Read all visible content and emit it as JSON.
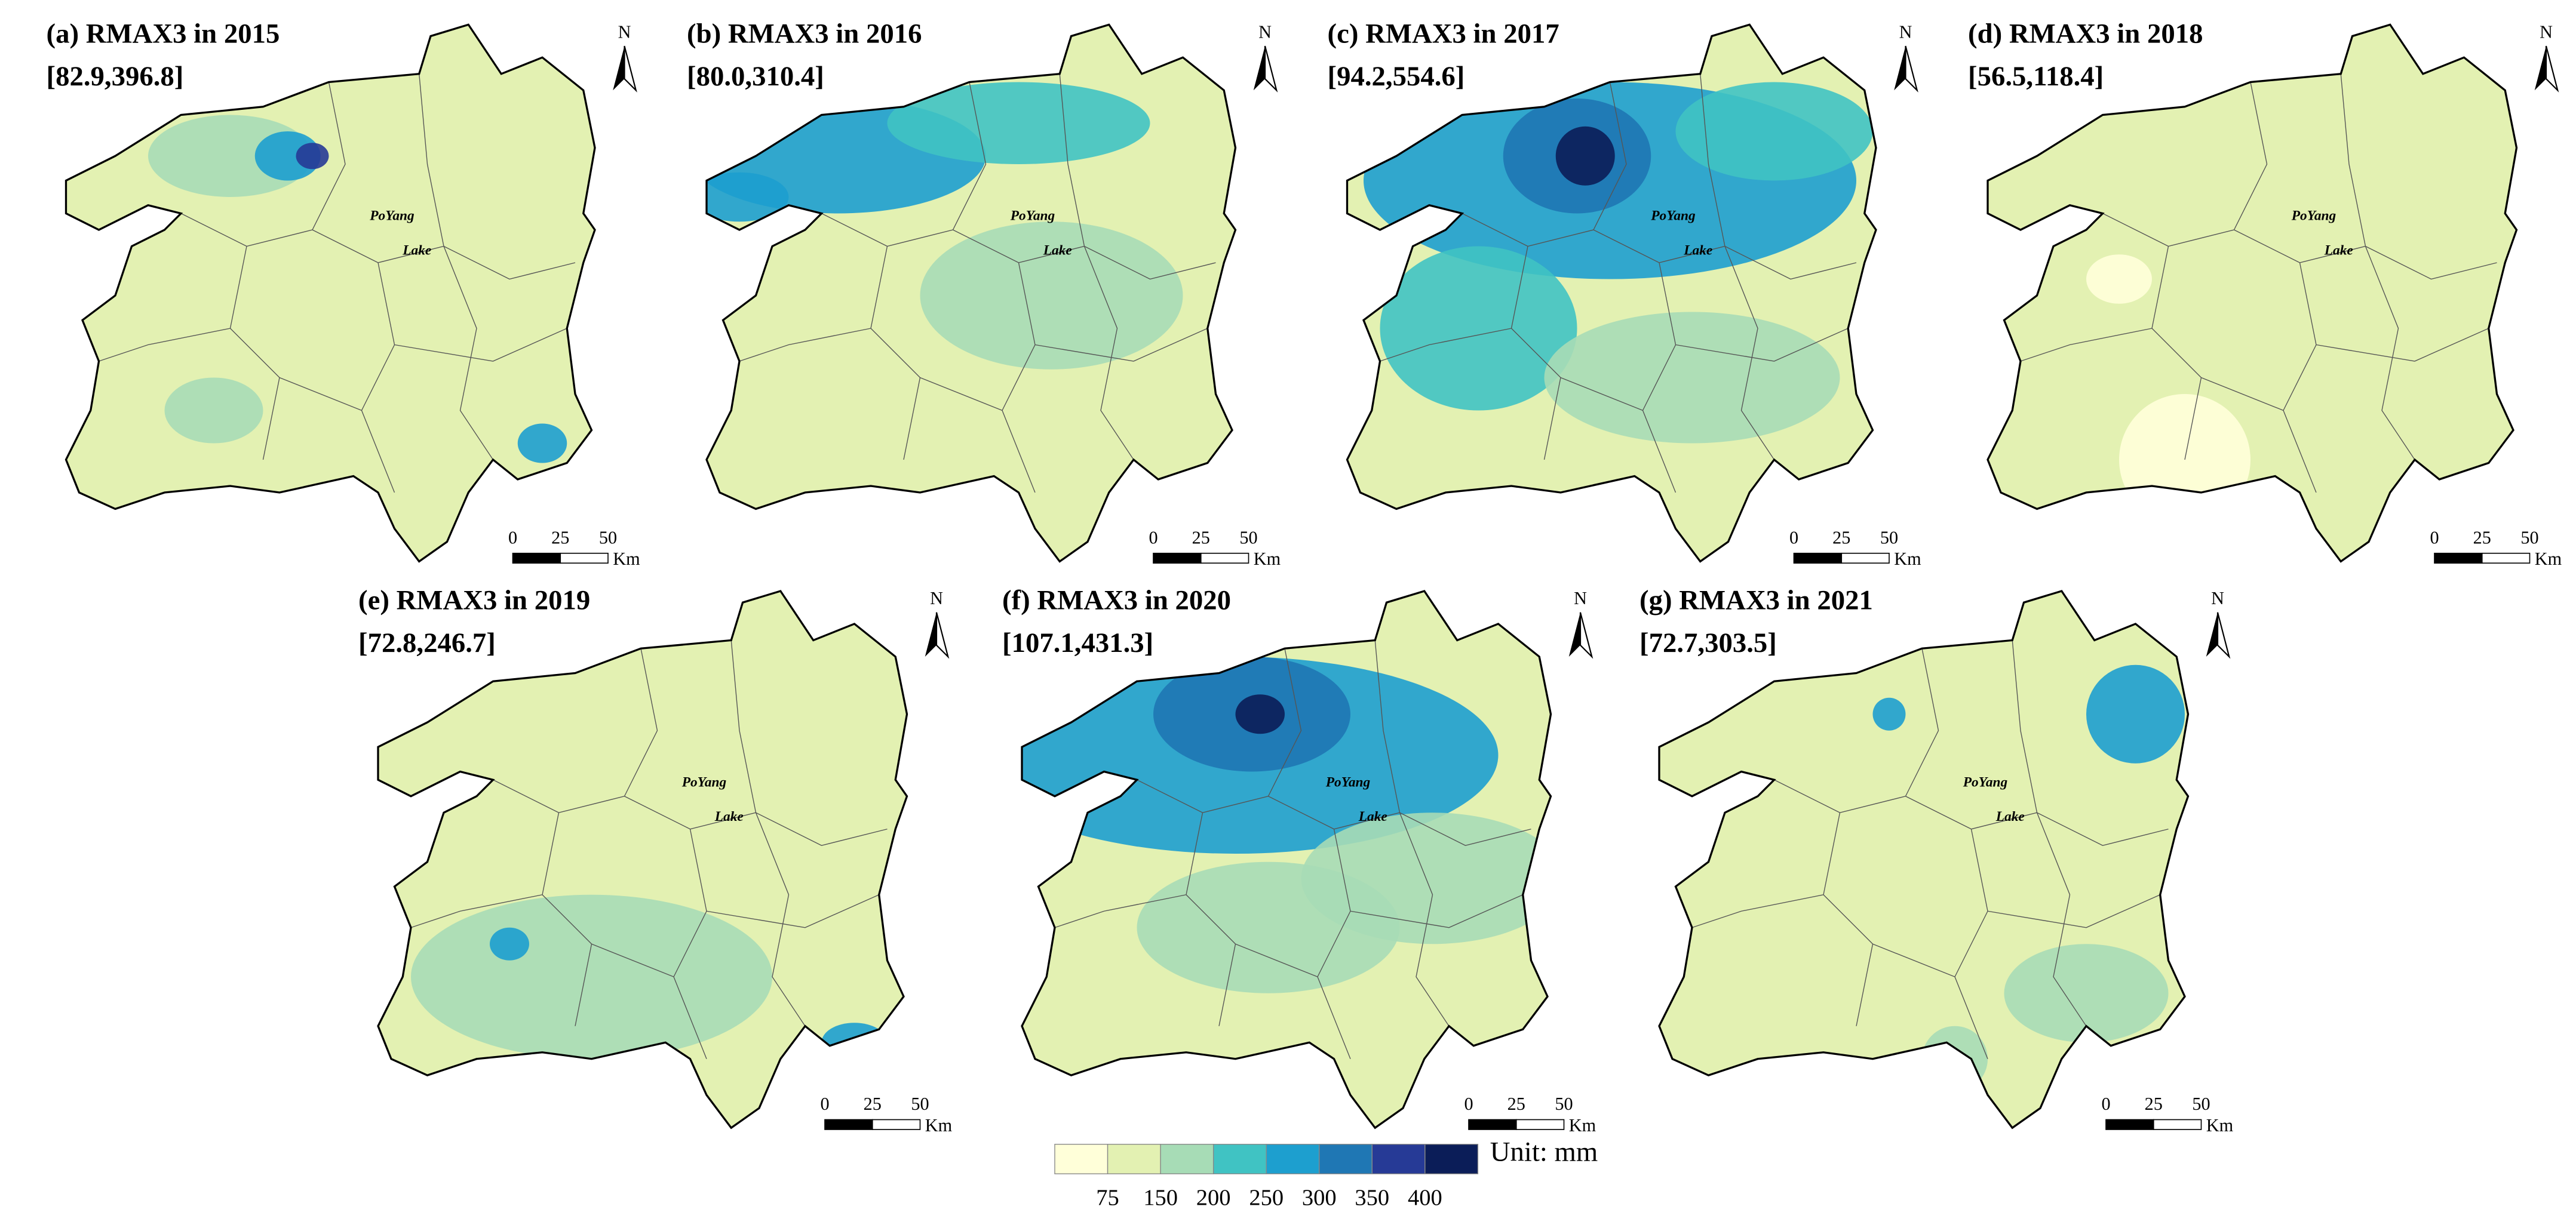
{
  "panels": [
    {
      "label": "(a) RMAX3  in 2015",
      "range": "[82.9,396.8]"
    },
    {
      "label": "(b) RMAX3  in 2016",
      "range": "[80.0,310.4]"
    },
    {
      "label": "(c) RMAX3  in 2017",
      "range": "[94.2,554.6]"
    },
    {
      "label": "(d) RMAX3  in 2018",
      "range": "[56.5,118.4]"
    },
    {
      "label": "(e) RMAX3  in 2019",
      "range": "[72.8,246.7]"
    },
    {
      "label": "(f) RMAX3  in 2020",
      "range": "[107.1,431.3]"
    },
    {
      "label": "(g) RMAX3 in 2021",
      "range": "[72.7,303.5]"
    }
  ],
  "map_labels": {
    "lake_name": "PoYang",
    "lake_word": "Lake",
    "north": "N"
  },
  "scale_bar": {
    "ticks": [
      0,
      25,
      50
    ],
    "unit": "Km"
  },
  "legend": {
    "colors": [
      "#ffffd9",
      "#e3f1b2",
      "#a7dcb6",
      "#40c3c3",
      "#1d9fcf",
      "#1f77b4",
      "#263a96",
      "#0b1d58"
    ],
    "ticks": [
      75,
      150,
      200,
      250,
      300,
      350,
      400
    ],
    "unit_label": "Unit: mm"
  }
}
